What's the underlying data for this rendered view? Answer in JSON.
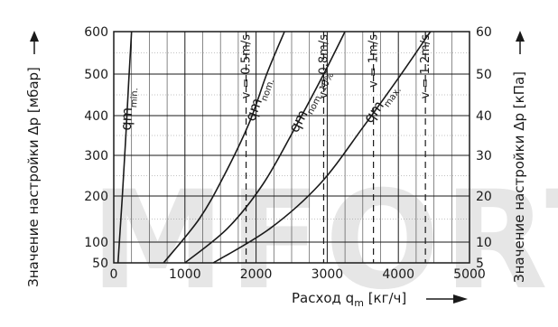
{
  "chart_data": {
    "type": "line",
    "xlabel_prefix": "Расход q",
    "xlabel_sub": "m",
    "xlabel_suffix": " [кг/ч]",
    "ylabel_left": "Значение настройки Δp [мбар]",
    "ylabel_right": "Значение настройки Δp [кПа]",
    "xlim": [
      0,
      5000
    ],
    "ylim": [
      50,
      600
    ],
    "x_ticks": [
      0,
      1000,
      2000,
      3000,
      4000,
      5000
    ],
    "y_ticks_left": [
      50,
      100,
      200,
      300,
      400,
      500,
      600
    ],
    "y_ticks_right": [
      {
        "value": 50,
        "label": "5"
      },
      {
        "value": 100,
        "label": "10"
      },
      {
        "value": 200,
        "label": "20"
      },
      {
        "value": 300,
        "label": "30"
      },
      {
        "value": 400,
        "label": "40"
      },
      {
        "value": 500,
        "label": "50"
      },
      {
        "value": 600,
        "label": "60"
      }
    ],
    "grid": true,
    "series": [
      {
        "name": "qm",
        "sub": "min.",
        "x": [
          60,
          120,
          170,
          210,
          250
        ],
        "y": [
          50,
          200,
          350,
          480,
          600
        ]
      },
      {
        "name": "qm",
        "sub": "nom.",
        "x": [
          700,
          1200,
          1550,
          1900,
          2150,
          2400
        ],
        "y": [
          50,
          150,
          250,
          380,
          500,
          600
        ]
      },
      {
        "name": "qm",
        "sub": "nom.-10%",
        "x": [
          1000,
          1600,
          2100,
          2550,
          2950,
          3250
        ],
        "y": [
          50,
          130,
          230,
          370,
          500,
          600
        ]
      },
      {
        "name": "qm",
        "sub": "max.",
        "x": [
          1400,
          2200,
          2900,
          3500,
          4000,
          4450
        ],
        "y": [
          50,
          130,
          230,
          370,
          490,
          600
        ]
      }
    ],
    "velocity_lines": [
      {
        "label": "v = 0.5m/s",
        "x": 1860
      },
      {
        "label": "v = 0.8m/s",
        "x": 2950
      },
      {
        "label": "v = 1m/s",
        "x": 3650
      },
      {
        "label": "v = 1.2m/s",
        "x": 4380
      }
    ]
  },
  "watermark": "MFORT"
}
